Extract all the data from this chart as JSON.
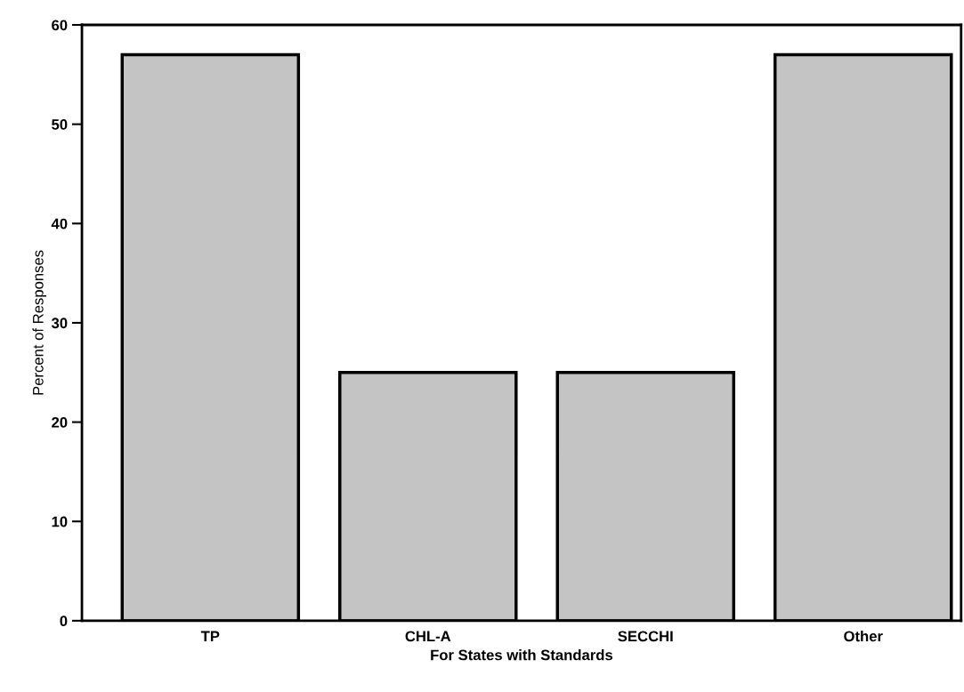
{
  "chart_data": {
    "type": "bar",
    "xlabel": "For States with Standards",
    "ylabel": "Percent of Responses",
    "categories": [
      "TP",
      "CHL-A",
      "SECCHI",
      "Other"
    ],
    "values": [
      57,
      25,
      25,
      57
    ],
    "color": "#c4c4c4",
    "ylim": [
      0,
      60
    ],
    "yticks": [
      0,
      10,
      20,
      30,
      40,
      50,
      60
    ],
    "grid": false
  }
}
